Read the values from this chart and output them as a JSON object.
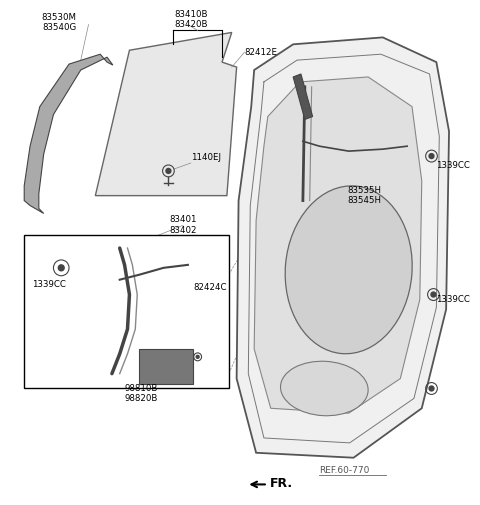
{
  "background_color": "#ffffff",
  "line_color": "#000000",
  "dark_gray": "#444444",
  "mid_gray": "#888888",
  "light_gray": "#cccccc",
  "font_size": 6.5,
  "labels": {
    "83530M_83540G": "83530M\n83540G",
    "83410B_83420B": "83410B\n83420B",
    "82412E": "82412E",
    "1140EJ": "1140EJ",
    "83401_83402": "83401\n83402",
    "1339CC_box": "1339CC",
    "82424C": "82424C",
    "98810B_98820B": "98810B\n98820B",
    "83535H_83545H": "83535H\n83545H",
    "1339CC_r1": "1339CC",
    "1339CC_r2": "1339CC",
    "REF": "REF.60-770",
    "FR": "FR."
  }
}
